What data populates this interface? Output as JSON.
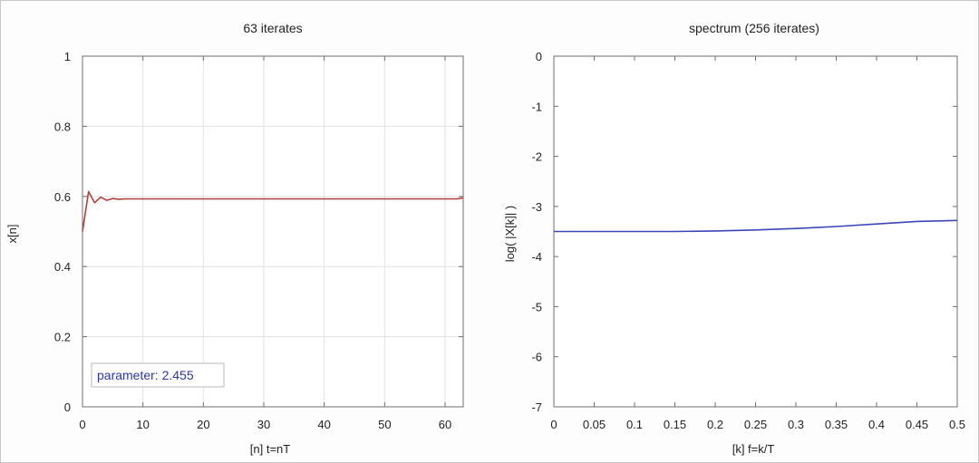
{
  "colors": {
    "left_series": "#b0403c",
    "right_series": "#3c46b8",
    "grid": "#e2e2e2",
    "axis": "#6e6e6e",
    "legend_text": "#2e36a3"
  },
  "chart_data": [
    {
      "type": "line",
      "title": "63 iterates",
      "xlabel": "[n]  t=nT",
      "ylabel": "x[n]",
      "xlim": [
        0,
        63
      ],
      "ylim": [
        0,
        1
      ],
      "xticks": [
        0,
        10,
        20,
        30,
        40,
        50,
        60
      ],
      "yticks": [
        0,
        0.2,
        0.4,
        0.6,
        0.8,
        1
      ],
      "xtick_labels": [
        "0",
        "10",
        "20",
        "30",
        "40",
        "50",
        "60"
      ],
      "ytick_labels": [
        "0",
        "0.2",
        "0.4",
        "0.6",
        "0.8",
        "1"
      ],
      "grid": true,
      "annotation": "parameter: 2.455",
      "series": [
        {
          "x": [
            0,
            1,
            2,
            3,
            4,
            5,
            6,
            7,
            8,
            9,
            10,
            15,
            20,
            25,
            30,
            35,
            40,
            45,
            50,
            55,
            60,
            62,
            63
          ],
          "y": [
            0.5,
            0.614,
            0.582,
            0.598,
            0.589,
            0.594,
            0.592,
            0.593,
            0.593,
            0.593,
            0.593,
            0.593,
            0.593,
            0.593,
            0.593,
            0.593,
            0.593,
            0.593,
            0.593,
            0.593,
            0.593,
            0.593,
            0.596
          ]
        }
      ]
    },
    {
      "type": "line",
      "title": "spectrum (256 iterates)",
      "xlabel": "[k]  f=k/T",
      "ylabel": "log( |X[k]| )",
      "xlim": [
        0,
        0.5
      ],
      "ylim": [
        -7,
        0
      ],
      "xticks": [
        0,
        0.05,
        0.1,
        0.15,
        0.2,
        0.25,
        0.3,
        0.35,
        0.4,
        0.45,
        0.5
      ],
      "yticks": [
        -7,
        -6,
        -5,
        -4,
        -3,
        -2,
        -1,
        0
      ],
      "xtick_labels": [
        "0",
        "0.05",
        "0.1",
        "0.15",
        "0.2",
        "0.25",
        "0.3",
        "0.35",
        "0.4",
        "0.45",
        "0.5"
      ],
      "ytick_labels": [
        "-7",
        "-6",
        "-5",
        "-4",
        "-3",
        "-2",
        "-1",
        "0"
      ],
      "grid": false,
      "series": [
        {
          "x": [
            0,
            0.05,
            0.1,
            0.15,
            0.2,
            0.25,
            0.3,
            0.35,
            0.4,
            0.45,
            0.5
          ],
          "y": [
            -3.5,
            -3.5,
            -3.5,
            -3.5,
            -3.49,
            -3.47,
            -3.44,
            -3.4,
            -3.35,
            -3.3,
            -3.28
          ]
        }
      ]
    }
  ]
}
